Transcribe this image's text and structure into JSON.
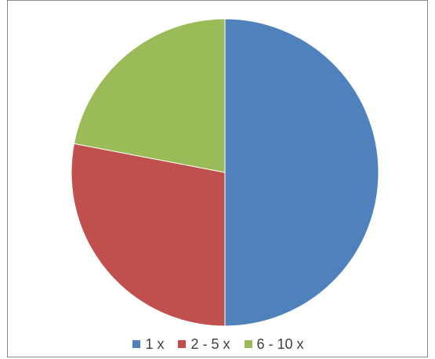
{
  "chart_data": {
    "type": "pie",
    "categories": [
      "1 x",
      "2 - 5 x",
      "6 - 10 x"
    ],
    "values": [
      50,
      28,
      22
    ],
    "colors": [
      "#4f81bd",
      "#c0504d",
      "#9bbb59"
    ],
    "title": "",
    "legend_position": "bottom"
  }
}
